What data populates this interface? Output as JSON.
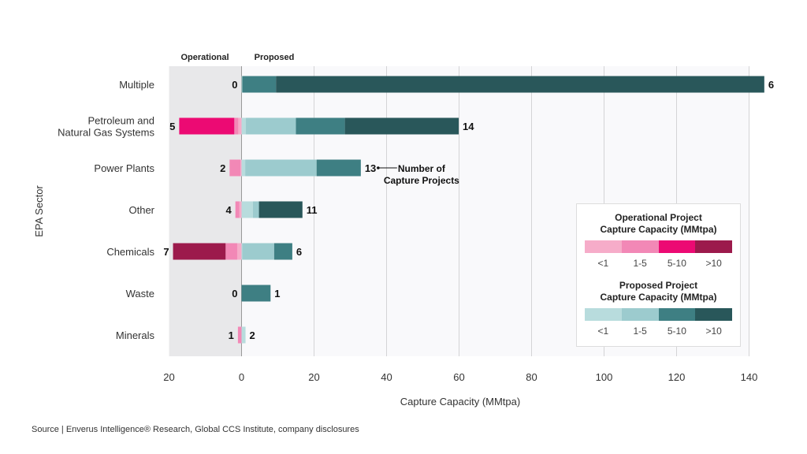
{
  "chart_data": {
    "type": "bar",
    "orientation": "horizontal-diverging-stacked",
    "xlabel": "Capture Capacity (MMtpa)",
    "ylabel": "EPA Sector",
    "side_labels": {
      "left": "Operational",
      "right": "Proposed"
    },
    "xlim": [
      -20,
      140
    ],
    "xticks": [
      -20,
      0,
      20,
      40,
      60,
      80,
      100,
      120,
      140
    ],
    "xtick_labels": [
      "20",
      "0",
      "20",
      "40",
      "60",
      "80",
      "100",
      "120",
      "140"
    ],
    "grid": true,
    "size_bins": [
      "<1",
      "1-5",
      "5-10",
      ">10"
    ],
    "categories": [
      "Multiple",
      "Petroleum and\nNatural Gas Systems",
      "Power Plants",
      "Other",
      "Chemicals",
      "Waste",
      "Minerals"
    ],
    "operational": [
      [
        0,
        0,
        0,
        0
      ],
      [
        0.9,
        1.1,
        15.2,
        0
      ],
      [
        0.3,
        3.0,
        0,
        0
      ],
      [
        0.6,
        1.1,
        0,
        0
      ],
      [
        1.2,
        3.2,
        0,
        14.5
      ],
      [
        0,
        0,
        0,
        0
      ],
      [
        0,
        1.0,
        0,
        0
      ]
    ],
    "proposed": [
      [
        0.2,
        0,
        9.3,
        134.7
      ],
      [
        1.2,
        13.8,
        13.5,
        31.4
      ],
      [
        1.0,
        19.7,
        12.2,
        0
      ],
      [
        3.1,
        1.7,
        0,
        12.0
      ],
      [
        0.2,
        8.8,
        5.0,
        0
      ],
      [
        0,
        0,
        8.0,
        0
      ],
      [
        1.1,
        0,
        0,
        0
      ]
    ],
    "operational_counts": [
      "0",
      "5",
      "2",
      "4",
      "7",
      "0",
      "1"
    ],
    "proposed_counts": [
      "6",
      "14",
      "13",
      "11",
      "6",
      "1",
      "2"
    ],
    "annotation": "Number of\nCapture Projects",
    "legend": {
      "operational_title": "Operational Project\nCapture Capacity (MMtpa)",
      "proposed_title": "Proposed Project\nCapture Capacity (MMtpa)"
    }
  },
  "colors": {
    "operational": [
      "#f6acc9",
      "#f288b6",
      "#ec0a73",
      "#9c1a4c"
    ],
    "proposed": [
      "#b8dcdd",
      "#9ccbce",
      "#3e7f83",
      "#29575a"
    ]
  },
  "source": "Source | Enverus Intelligence® Research, Global CCS Institute, company disclosures"
}
